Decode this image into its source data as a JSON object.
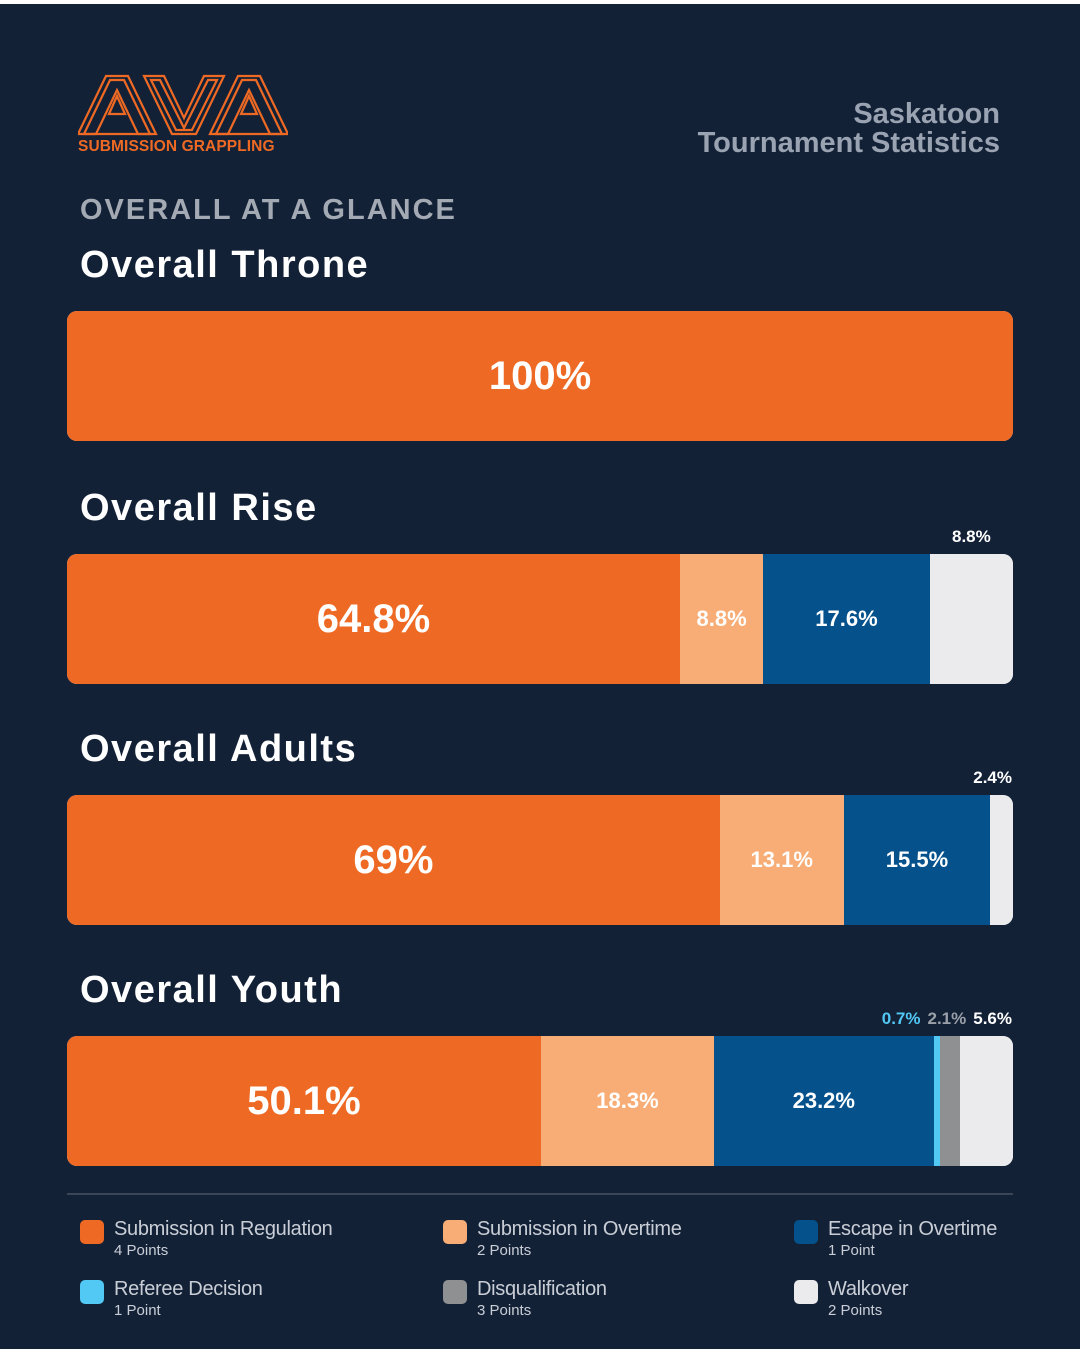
{
  "brand": {
    "logo_text": "AVA",
    "subtitle": "SUBMISSION GRAPPLING",
    "accent": "#ee6a24"
  },
  "header": {
    "line1": "Saskatoon",
    "line2": "Tournament Statistics"
  },
  "section_title": "OVERALL AT A GLANCE",
  "legend": [
    {
      "label": "Submission in Regulation",
      "points": "4 Points",
      "color": "#ee6a24"
    },
    {
      "label": "Submission in Overtime",
      "points": "2 Points",
      "color": "#f8ad76"
    },
    {
      "label": "Escape in Overtime",
      "points": "1 Point",
      "color": "#04518c"
    },
    {
      "label": "Referee Decision",
      "points": "1 Point",
      "color": "#52c8f4"
    },
    {
      "label": "Disqualification",
      "points": "3 Points",
      "color": "#8f9092"
    },
    {
      "label": "Walkover",
      "points": "2 Points",
      "color": "#ebebed"
    }
  ],
  "chart_data": [
    {
      "type": "bar",
      "orientation": "horizontal-stacked-100",
      "title": "Overall Throne",
      "categories": [
        "Submission in Regulation"
      ],
      "values": [
        100
      ],
      "labels": [
        "100%"
      ]
    },
    {
      "type": "bar",
      "orientation": "horizontal-stacked-100",
      "title": "Overall Rise",
      "categories": [
        "Submission in Regulation",
        "Submission in Overtime",
        "Escape in Overtime",
        "Walkover"
      ],
      "values": [
        64.8,
        8.8,
        17.6,
        8.8
      ],
      "labels": [
        "64.8%",
        "8.8%",
        "17.6%",
        "8.8%"
      ]
    },
    {
      "type": "bar",
      "orientation": "horizontal-stacked-100",
      "title": "Overall Adults",
      "categories": [
        "Submission in Regulation",
        "Submission in Overtime",
        "Escape in Overtime",
        "Walkover"
      ],
      "values": [
        69,
        13.1,
        15.5,
        2.4
      ],
      "labels": [
        "69%",
        "13.1%",
        "15.5%",
        "2.4%"
      ]
    },
    {
      "type": "bar",
      "orientation": "horizontal-stacked-100",
      "title": "Overall Youth",
      "categories": [
        "Submission in Regulation",
        "Submission in Overtime",
        "Escape in Overtime",
        "Referee Decision",
        "Disqualification",
        "Walkover"
      ],
      "values": [
        50.1,
        18.3,
        23.2,
        0.7,
        2.1,
        5.6
      ],
      "labels": [
        "50.1%",
        "18.3%",
        "23.2%",
        "0.7%",
        "2.1%",
        "5.6%"
      ]
    }
  ]
}
